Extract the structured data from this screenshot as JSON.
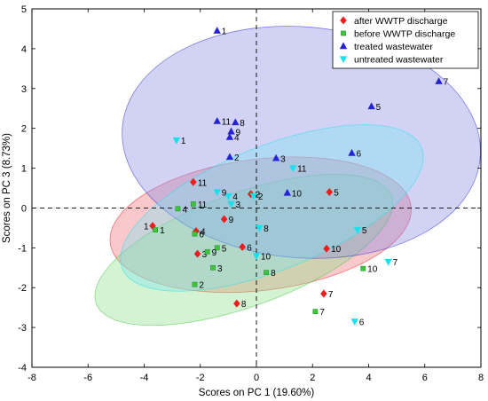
{
  "chart_data": {
    "type": "scatter",
    "xlabel": "Scores on PC 1 (19.60%)",
    "ylabel": "Scores on PC 3 (8.73%)",
    "xlim": [
      -8,
      8
    ],
    "ylim": [
      -4,
      5
    ],
    "xticks": [
      -8,
      -6,
      -4,
      -2,
      0,
      2,
      4,
      6,
      8
    ],
    "yticks": [
      -4,
      -3,
      -2,
      -1,
      0,
      1,
      2,
      3,
      4,
      5
    ],
    "legend_position": "top-right",
    "reference_lines": {
      "x": 0,
      "y": 0,
      "style": "dashed"
    },
    "series": [
      {
        "name": "after WWTP discharge",
        "marker": "diamond",
        "color": "#ee1c1c",
        "ellipse": {
          "cx": 0.15,
          "cy": -0.42,
          "rx": 5.4,
          "ry": 1.65,
          "angle_deg": -7,
          "fill": "#ec6f73"
        },
        "points": [
          {
            "label": "1",
            "x": -3.7,
            "y": -0.45
          },
          {
            "label": "2",
            "x": -0.2,
            "y": 0.35
          },
          {
            "label": "3",
            "x": -2.1,
            "y": -1.15
          },
          {
            "label": "4",
            "x": -2.15,
            "y": -0.58
          },
          {
            "label": "5",
            "x": 2.6,
            "y": 0.4
          },
          {
            "label": "6",
            "x": -0.5,
            "y": -0.98
          },
          {
            "label": "7",
            "x": 2.4,
            "y": -2.15
          },
          {
            "label": "8",
            "x": -0.7,
            "y": -2.4
          },
          {
            "label": "9",
            "x": -1.15,
            "y": -0.28
          },
          {
            "label": "10",
            "x": 2.5,
            "y": -1.02
          },
          {
            "label": "11",
            "x": -2.25,
            "y": 0.65
          }
        ]
      },
      {
        "name": "before WWTP discharge",
        "marker": "square",
        "color": "#3ec43e",
        "ellipse": {
          "cx": -0.45,
          "cy": -1.05,
          "rx": 5.6,
          "ry": 1.42,
          "angle_deg": -20,
          "fill": "#8ee08a"
        },
        "points": [
          {
            "label": "1",
            "x": -3.6,
            "y": -0.55
          },
          {
            "label": "2",
            "x": -2.2,
            "y": -1.92
          },
          {
            "label": "3",
            "x": -1.55,
            "y": -1.5
          },
          {
            "label": "4",
            "x": -2.8,
            "y": -0.02
          },
          {
            "label": "5",
            "x": -1.4,
            "y": -1.0
          },
          {
            "label": "6",
            "x": -2.2,
            "y": -0.65
          },
          {
            "label": "7",
            "x": 2.1,
            "y": -2.6
          },
          {
            "label": "8",
            "x": 0.35,
            "y": -1.62
          },
          {
            "label": "9",
            "x": -1.75,
            "y": -1.1
          },
          {
            "label": "10",
            "x": 3.8,
            "y": -1.52
          },
          {
            "label": "11",
            "x": -2.25,
            "y": 0.1
          }
        ]
      },
      {
        "name": "treated wastewater",
        "marker": "triangle-up",
        "color": "#2424d6",
        "ellipse": {
          "cx": 1.6,
          "cy": 1.65,
          "rx": 6.4,
          "ry": 2.9,
          "angle_deg": 5,
          "fill": "#8a8ae6"
        },
        "points": [
          {
            "label": "1",
            "x": -1.4,
            "y": 4.45
          },
          {
            "label": "2",
            "x": -0.95,
            "y": 1.28
          },
          {
            "label": "3",
            "x": 0.7,
            "y": 1.25
          },
          {
            "label": "4",
            "x": -0.95,
            "y": 1.78
          },
          {
            "label": "5",
            "x": 4.1,
            "y": 2.55
          },
          {
            "label": "6",
            "x": 3.4,
            "y": 1.38
          },
          {
            "label": "7",
            "x": 6.5,
            "y": 3.18
          },
          {
            "label": "8",
            "x": -0.75,
            "y": 2.15
          },
          {
            "label": "9",
            "x": -0.9,
            "y": 1.92
          },
          {
            "label": "10",
            "x": 1.1,
            "y": 0.38
          },
          {
            "label": "11",
            "x": -1.4,
            "y": 2.18
          }
        ]
      },
      {
        "name": "untreated wastewater",
        "marker": "triangle-down",
        "color": "#19e0ee",
        "ellipse": {
          "cx": 0.55,
          "cy": 0.0,
          "rx": 5.75,
          "ry": 1.55,
          "angle_deg": -22,
          "fill": "#7ee6f2"
        },
        "points": [
          {
            "label": "1",
            "x": -2.85,
            "y": 1.7
          },
          {
            "label": "2",
            "x": -0.1,
            "y": 0.3
          },
          {
            "label": "3",
            "x": -0.9,
            "y": 0.1
          },
          {
            "label": "4",
            "x": -1.0,
            "y": 0.3
          },
          {
            "label": "5",
            "x": 3.6,
            "y": -0.55
          },
          {
            "label": "6",
            "x": 3.5,
            "y": -2.85
          },
          {
            "label": "7",
            "x": 4.7,
            "y": -1.35
          },
          {
            "label": "8",
            "x": 0.1,
            "y": -0.5
          },
          {
            "label": "9",
            "x": -1.4,
            "y": 0.4
          },
          {
            "label": "10",
            "x": 0.0,
            "y": -1.2
          },
          {
            "label": "11",
            "x": 1.3,
            "y": 1.0
          }
        ]
      }
    ]
  }
}
